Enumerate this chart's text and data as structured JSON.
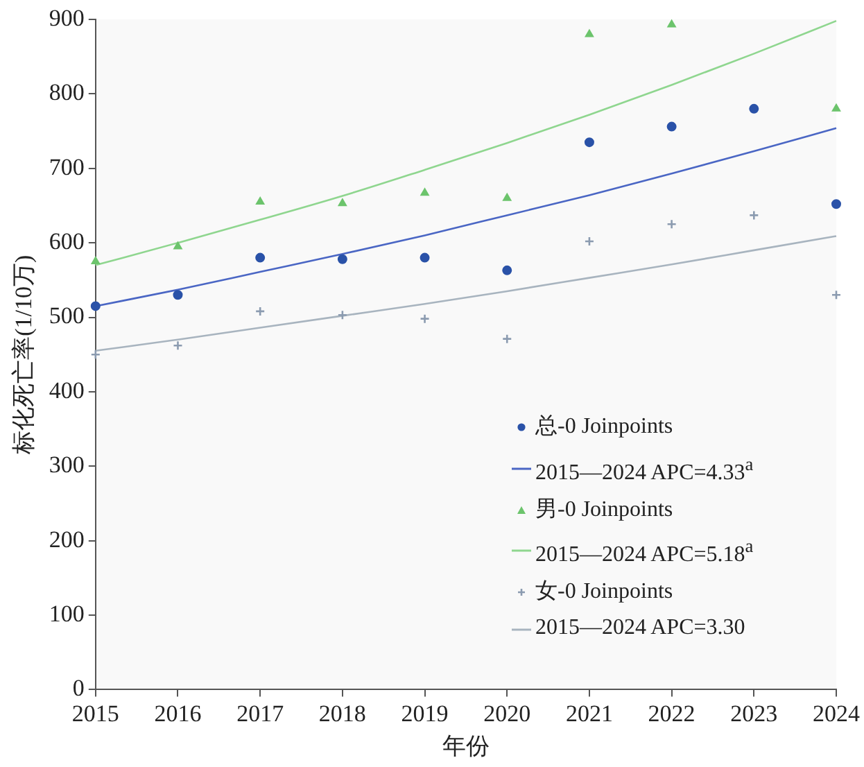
{
  "chart_data": {
    "type": "scatter",
    "xlabel": "年份",
    "ylabel": "标化死亡率(1/10万)",
    "xlim": [
      2015,
      2024
    ],
    "xticks": [
      2015,
      2016,
      2017,
      2018,
      2019,
      2020,
      2021,
      2022,
      2023,
      2024
    ],
    "ylim": [
      0,
      900
    ],
    "yticks": [
      0,
      100,
      200,
      300,
      400,
      500,
      600,
      700,
      800,
      900
    ],
    "grid": false,
    "legend": "bottom right",
    "x": [
      2015,
      2016,
      2017,
      2018,
      2019,
      2020,
      2021,
      2022,
      2023,
      2024
    ],
    "series": [
      {
        "name": "总-0 Joinpoints",
        "marker": "circle",
        "color": "#2a52a8",
        "values": [
          515,
          530,
          580,
          578,
          580,
          563,
          735,
          756,
          780,
          652
        ]
      },
      {
        "name": "2015—2024 APC=4.33$^{a}$",
        "type": "line",
        "marker": "none",
        "color": "#4a66c4",
        "values": [
          515,
          537,
          561,
          585,
          610,
          637,
          664,
          693,
          723,
          754
        ]
      },
      {
        "name": "男-0 Joinpoints",
        "marker": "triangle",
        "color": "#6cc46c",
        "values": [
          575,
          595,
          655,
          653,
          667,
          660,
          880,
          893,
          null,
          780
        ]
      },
      {
        "name": "2015—2024 APC=5.18$^{a}$",
        "type": "line",
        "marker": "none",
        "color": "#8fd68f",
        "values": [
          570,
          600,
          631,
          663,
          698,
          734,
          772,
          812,
          854,
          898
        ]
      },
      {
        "name": "女-0 Joinpoints",
        "marker": "cross",
        "color": "#8b9bb0",
        "values": [
          450,
          462,
          508,
          503,
          498,
          471,
          602,
          625,
          637,
          530
        ]
      },
      {
        "name": "2015—2024 APC=3.30",
        "type": "line",
        "marker": "none",
        "color": "#a8b4bf",
        "values": [
          455,
          470,
          486,
          502,
          518,
          535,
          553,
          571,
          590,
          609
        ]
      }
    ]
  }
}
